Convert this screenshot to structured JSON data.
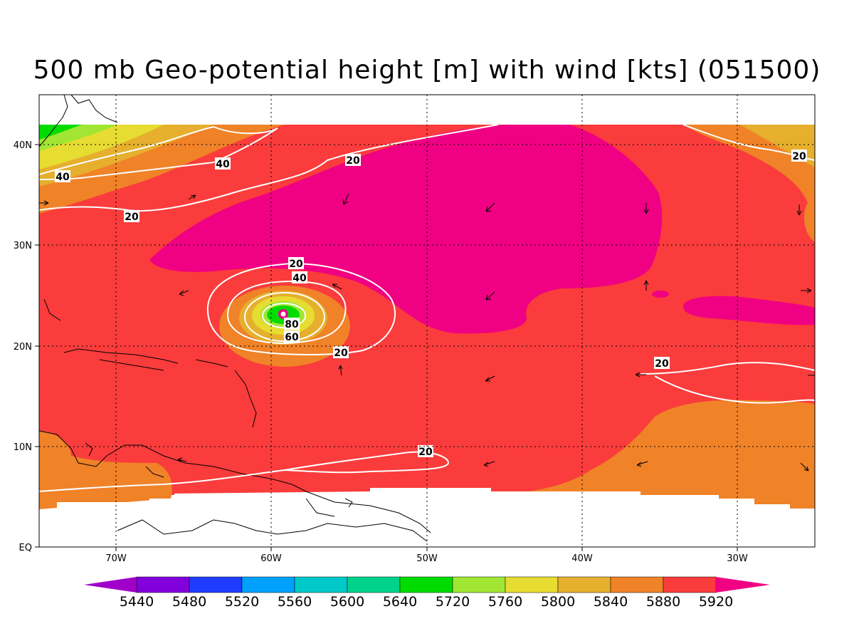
{
  "title": "500 mb Geo-potential height [m] with wind [kts] (051500)",
  "lat_ticks": [
    "40N",
    "30N",
    "20N",
    "10N",
    "EQ"
  ],
  "lon_ticks": [
    "70W",
    "60W",
    "50W",
    "40W",
    "30W"
  ],
  "colorbar": {
    "labels": [
      "5440",
      "5480",
      "5520",
      "5560",
      "5600",
      "5640",
      "5720",
      "5760",
      "5800",
      "5840",
      "5880",
      "5920"
    ],
    "colors": [
      "#a000c8",
      "#8200dc",
      "#1e3cff",
      "#00a0ff",
      "#00c8c8",
      "#00d28c",
      "#00dc00",
      "#a0e632",
      "#e6dc32",
      "#e6af2d",
      "#f08228",
      "#fa3c3c",
      "#f00082"
    ]
  },
  "wind_contour_labels": [
    "20",
    "20",
    "20",
    "20",
    "20",
    "20",
    "20",
    "40",
    "40",
    "40",
    "60",
    "80"
  ],
  "map_colors": {
    "background": "#fa3c3c",
    "ridge": "#f00082",
    "outer": "#f08228",
    "mid": "#e6af2d",
    "yellow": "#e6dc32",
    "lightgreen": "#a0e632",
    "green": "#00dc00",
    "contour": "#ffffff"
  }
}
